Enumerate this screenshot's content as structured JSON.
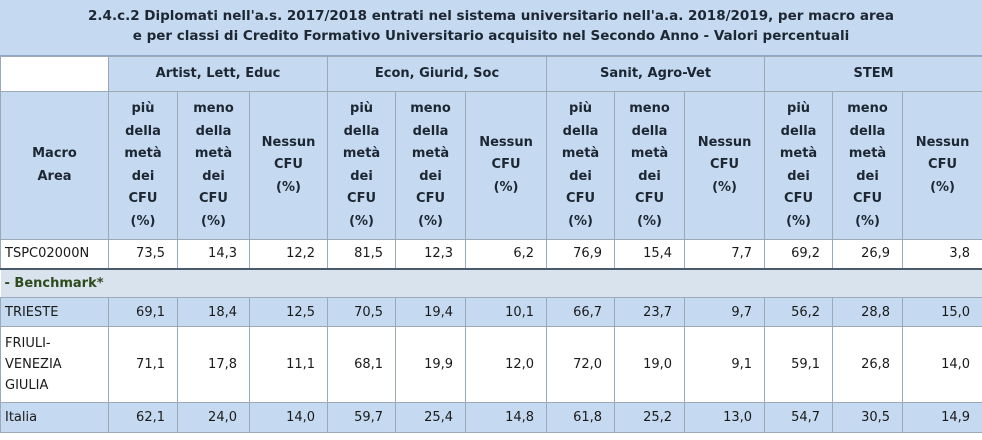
{
  "title": {
    "line1": "2.4.c.2 Diplomati nell'a.s. 2017/2018 entrati nel sistema universitario nell'a.a. 2018/2019, per macro area",
    "line2": "e per classi di Credito Formativo Universitario acquisito nel Secondo Anno - Valori percentuali"
  },
  "header": {
    "macro_area": [
      "Macro",
      "Area"
    ],
    "groups": [
      "Artist, Lett, Educ",
      "Econ, Giurid, Soc",
      "Sanit, Agro-Vet",
      "STEM"
    ],
    "sub": {
      "more": [
        "più",
        "della",
        "metà",
        "dei",
        "CFU",
        "(%)"
      ],
      "less": [
        "meno",
        "della",
        "metà",
        "dei",
        "CFU",
        "(%)"
      ],
      "none": [
        "Nessun",
        "CFU",
        "(%)"
      ]
    }
  },
  "rows": [
    {
      "label": [
        "TSPC02000N"
      ],
      "values": [
        "73,5",
        "14,3",
        "12,2",
        "81,5",
        "12,3",
        "6,2",
        "76,9",
        "15,4",
        "7,7",
        "69,2",
        "26,9",
        "3,8"
      ]
    },
    {
      "label": [
        "- Benchmark*"
      ]
    },
    {
      "label": [
        "TRIESTE"
      ],
      "values": [
        "69,1",
        "18,4",
        "12,5",
        "70,5",
        "19,4",
        "10,1",
        "66,7",
        "23,7",
        "9,7",
        "56,2",
        "28,8",
        "15,0"
      ]
    },
    {
      "label": [
        "FRIULI-",
        "VENEZIA",
        "GIULIA"
      ],
      "values": [
        "71,1",
        "17,8",
        "11,1",
        "68,1",
        "19,9",
        "12,0",
        "72,0",
        "19,0",
        "9,1",
        "59,1",
        "26,8",
        "14,0"
      ]
    },
    {
      "label": [
        "Italia"
      ],
      "values": [
        "62,1",
        "24,0",
        "14,0",
        "59,7",
        "25,4",
        "14,8",
        "61,8",
        "25,2",
        "13,0",
        "54,7",
        "30,5",
        "14,9"
      ]
    }
  ],
  "colors": {
    "header_bg": "#c5daf0",
    "benchmark_text": "#2f4a1c",
    "benchmark_bg": "#d8e3ee"
  }
}
